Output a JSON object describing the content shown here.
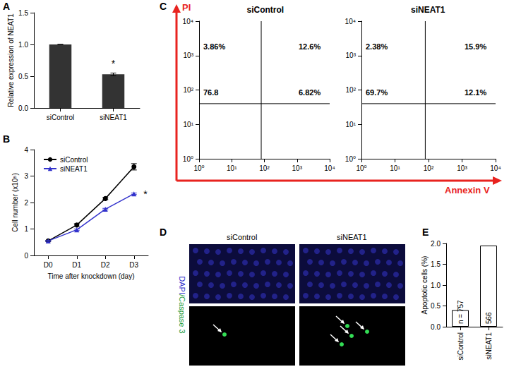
{
  "chart_data": [
    {
      "panel": "A",
      "type": "bar",
      "categories": [
        "siControl",
        "siNEAT1"
      ],
      "values": [
        1.0,
        0.53
      ],
      "errors": [
        0,
        0.02
      ],
      "significance": [
        null,
        "*"
      ],
      "color": "#333333",
      "ylabel": "Relative expression of NEAT1",
      "ylim": [
        0,
        1.5
      ],
      "yticks": [
        {
          "value": 0,
          "label": "0.0"
        },
        {
          "value": 0.5,
          "label": "0.5"
        },
        {
          "value": 1,
          "label": "1.0"
        },
        {
          "value": 1.5,
          "label": "1.5"
        }
      ]
    },
    {
      "panel": "B",
      "type": "line",
      "categories": [
        "D0",
        "D1",
        "D2",
        "D3"
      ],
      "series": [
        {
          "name": "siControl",
          "color": "#000000",
          "marker": "circle",
          "values": [
            0.55,
            1.15,
            2.15,
            3.35
          ],
          "errors": [
            0.02,
            0.05,
            0.04,
            0.12
          ]
        },
        {
          "name": "siNEAT1",
          "color": "#3333cc",
          "marker": "triangle",
          "values": [
            0.55,
            0.97,
            1.75,
            2.33
          ],
          "errors": [
            0.02,
            0.03,
            0.03,
            0.03
          ],
          "significance": "*"
        }
      ],
      "xlabel": "Time after knockdown (day)",
      "ylabel": "Cell number (x10⁵)",
      "ylim": [
        0,
        4
      ],
      "yticks": [
        0,
        1,
        2,
        3,
        4
      ],
      "legend": "upper left"
    },
    {
      "panel": "C",
      "type": "scatter",
      "xlabel": "Annexin V",
      "ylabel": "PI",
      "log": true,
      "xlim": [
        1,
        10000
      ],
      "ylim": [
        1,
        10000
      ],
      "xticks": [
        {
          "value": 1,
          "label": "10⁰"
        },
        {
          "value": 10,
          "label": "10¹"
        },
        {
          "value": 100,
          "label": "10²"
        },
        {
          "value": 1000,
          "label": "10³"
        },
        {
          "value": 10000,
          "label": "10⁴"
        }
      ],
      "yticks": [
        {
          "value": 1,
          "label": "10⁰"
        },
        {
          "value": 10,
          "label": "10¹"
        },
        {
          "value": 100,
          "label": "10²"
        },
        {
          "value": 1000,
          "label": "10³"
        },
        {
          "value": 10000,
          "label": "10⁴"
        }
      ],
      "gates": {
        "x": 80,
        "y": 40
      },
      "plots": [
        {
          "title": "siControl",
          "quadrant_labels": {
            "upper_left": "3.86%",
            "upper_right": "12.6%",
            "lower_left": "76.8",
            "lower_right": "6.82%"
          }
        },
        {
          "title": "siNEAT1",
          "quadrant_labels": {
            "upper_left": "2.38%",
            "upper_right": "15.9%",
            "lower_left": "69.7%",
            "lower_right": "12.1%"
          }
        }
      ]
    },
    {
      "panel": "D",
      "type": "image",
      "titles": [
        "siControl",
        "siNEAT1"
      ],
      "stain_labels": [
        {
          "text": "DAPI",
          "color": "#3333cc"
        },
        {
          "text": "/Caspase 3",
          "color": "#1a9a3a"
        }
      ]
    },
    {
      "panel": "E",
      "type": "bar",
      "categories": [
        "siControl",
        "siNEAT1"
      ],
      "values": [
        0.4,
        1.95
      ],
      "bar_labels": [
        "n = 757",
        "566"
      ],
      "color": "#ffffff",
      "ylabel": "Apoptotic cells (%)",
      "ylim": [
        0,
        2
      ],
      "yticks": [
        {
          "value": 0,
          "label": "0.0"
        },
        {
          "value": 0.5,
          "label": "0.5"
        },
        {
          "value": 1,
          "label": "1.0"
        },
        {
          "value": 1.5,
          "label": "1.5"
        },
        {
          "value": 2,
          "label": "2.0"
        }
      ]
    }
  ]
}
